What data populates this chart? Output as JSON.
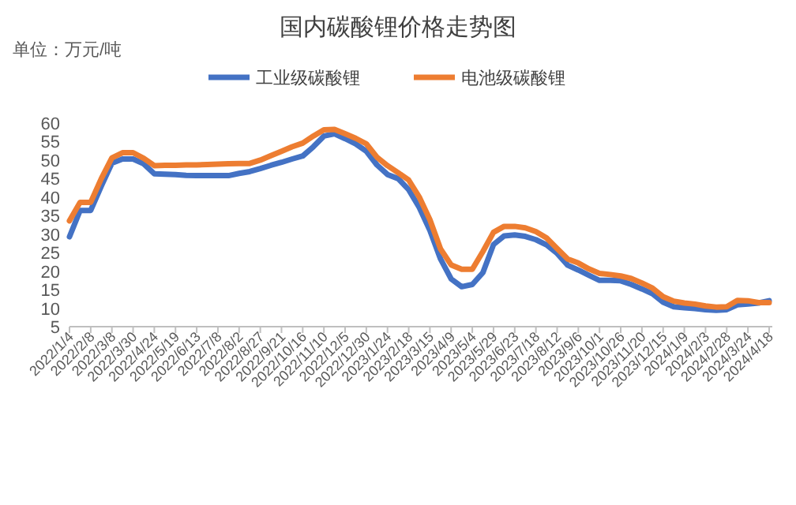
{
  "chart_data": {
    "type": "line",
    "title": "国内碳酸锂价格走势图",
    "annotations": [
      "单位：万元/吨"
    ],
    "legend": "top",
    "ylim": [
      5,
      60
    ],
    "yticks": [
      5,
      10,
      15,
      20,
      25,
      30,
      35,
      40,
      45,
      50,
      55,
      60
    ],
    "categories": [
      "2022/1/4",
      null,
      "2022/2/8",
      null,
      "2022/3/8",
      null,
      "2022/3/30",
      null,
      "2022/4/24",
      null,
      "2022/5/19",
      null,
      "2022/6/13",
      null,
      "2022/7/8",
      null,
      "2022/8/2",
      null,
      "2022/8/27",
      null,
      "2022/9/21",
      null,
      "2022/10/16",
      null,
      "2022/11/10",
      null,
      "2022/12/5",
      null,
      "2022/12/30",
      null,
      "2023/1/24",
      null,
      "2023/2/18",
      null,
      "2023/3/15",
      null,
      "2023/4/9",
      null,
      "2023/5/4",
      null,
      "2023/5/29",
      null,
      "2023/6/23",
      null,
      "2023/7/18",
      null,
      "2023/8/12",
      null,
      "2023/9/6",
      null,
      "2023/10/1",
      null,
      "2023/10/26",
      null,
      "2023/11/20",
      null,
      "2023/12/15",
      null,
      "2024/1/9",
      null,
      "2024/2/3",
      null,
      "2024/2/28",
      null,
      "2024/3/24",
      null,
      "2024/4/18"
    ],
    "series": [
      {
        "name": "工业级碳酸锂",
        "color": "#4472c4",
        "values": [
          29.3,
          36.4,
          36.4,
          43,
          49.2,
          50.3,
          50.3,
          49,
          46.3,
          46.2,
          46.1,
          45.9,
          45.8,
          45.8,
          45.8,
          45.8,
          46.4,
          46.9,
          47.7,
          48.6,
          49.4,
          50.3,
          51.1,
          53.6,
          56.5,
          57.1,
          55.8,
          54.4,
          52.4,
          48.7,
          46.1,
          45,
          42,
          37.2,
          31,
          23.3,
          17.9,
          15.8,
          16.4,
          19.6,
          27.2,
          29.5,
          29.8,
          29.4,
          28.5,
          27.1,
          24.8,
          21.6,
          20.3,
          18.9,
          17.5,
          17.5,
          17.4,
          16.4,
          15.2,
          13.9,
          11.6,
          10.4,
          10.1,
          9.9,
          9.6,
          9.4,
          9.6,
          10.9,
          11.1,
          11.4,
          12
        ]
      },
      {
        "name": "电池级碳酸锂",
        "color": "#ed7d31",
        "values": [
          33.6,
          38.6,
          38.6,
          45,
          50.6,
          52,
          52,
          50.5,
          48.5,
          48.6,
          48.6,
          48.7,
          48.7,
          48.8,
          48.9,
          49,
          49.1,
          49.1,
          50,
          51.2,
          52.4,
          53.6,
          54.6,
          56.5,
          58.2,
          58.3,
          57.1,
          55.9,
          54.4,
          50.8,
          48.5,
          46.6,
          44.6,
          40,
          33.9,
          26,
          21.7,
          20.5,
          20.5,
          25.3,
          30.5,
          32.1,
          32.1,
          31.7,
          30.7,
          29,
          26.1,
          23.3,
          22.2,
          20.6,
          19.4,
          19.1,
          18.7,
          18,
          16.8,
          15.4,
          13.1,
          11.9,
          11.4,
          11.1,
          10.6,
          10.3,
          10.4,
          12.1,
          12,
          11.5,
          11.5
        ]
      }
    ]
  }
}
